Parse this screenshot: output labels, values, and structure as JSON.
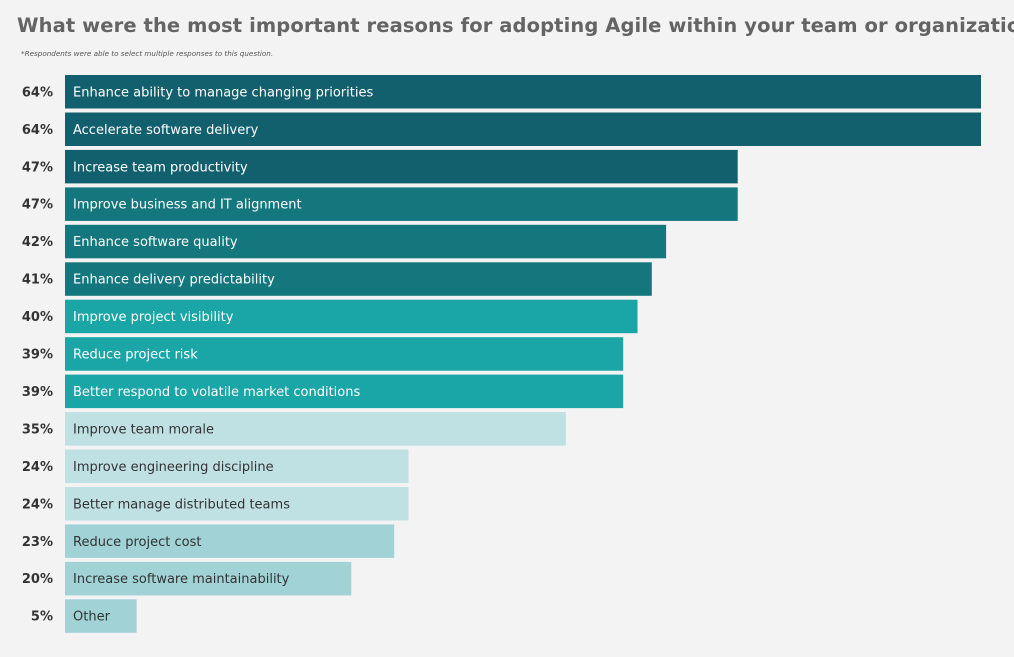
{
  "chart_data": {
    "type": "bar",
    "orientation": "horizontal",
    "title": "What were the most important reasons for adopting Agile within your team or organization?",
    "note": "*Respondents were able to select multiple responses to this question.",
    "xlabel": "",
    "ylabel": "",
    "xlim": [
      0,
      64
    ],
    "grid": false,
    "categories": [
      "Enhance ability to manage changing priorities",
      "Accelerate software delivery",
      "Increase team productivity",
      "Improve business and IT alignment",
      "Enhance software quality",
      "Enhance delivery predictability",
      "Improve project visibility",
      "Reduce project risk",
      "Better respond to volatile market conditions",
      "Improve team morale",
      "Improve engineering discipline",
      "Better manage distributed teams",
      "Reduce project cost",
      "Increase software maintainability",
      "Other"
    ],
    "values": [
      64,
      64,
      47,
      47,
      42,
      41,
      40,
      39,
      39,
      35,
      24,
      24,
      23,
      20,
      5
    ],
    "value_labels": [
      "64%",
      "64%",
      "47%",
      "47%",
      "42%",
      "41%",
      "40%",
      "39%",
      "39%",
      "35%",
      "24%",
      "24%",
      "23%",
      "20%",
      "5%"
    ],
    "bar_colors": [
      "#12606e",
      "#12606e",
      "#12606e",
      "#14777e",
      "#14777e",
      "#14777e",
      "#1aa5a6",
      "#1aa5a6",
      "#1aa5a6",
      "#c0e1e4",
      "#c0e1e4",
      "#c0e1e4",
      "#a1d2d6",
      "#a1d2d6",
      "#a1d2d6"
    ],
    "label_colors": [
      "#ffffff",
      "#ffffff",
      "#ffffff",
      "#ffffff",
      "#ffffff",
      "#ffffff",
      "#ffffff",
      "#ffffff",
      "#ffffff",
      "#333333",
      "#333333",
      "#333333",
      "#333333",
      "#333333",
      "#333333"
    ]
  }
}
